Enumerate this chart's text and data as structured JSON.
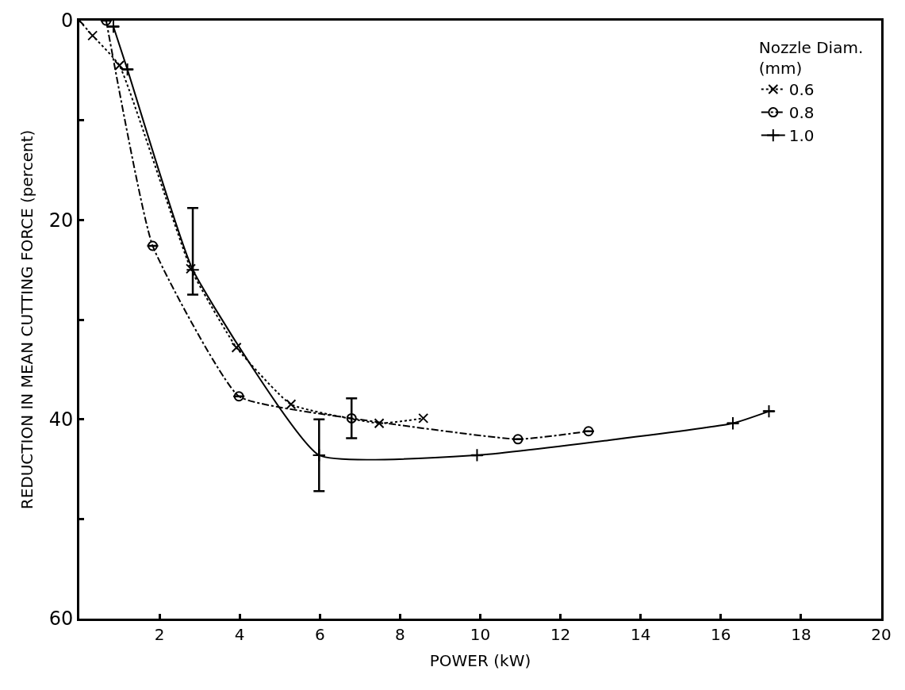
{
  "chart_data": {
    "type": "line",
    "xlabel": "POWER (kW)",
    "ylabel": "REDUCTION IN MEAN CUTTING FORCE (percent)",
    "legend_title": "Nozzle Diam.\n(mm)",
    "legend": "top right",
    "grid": false,
    "xlim": [
      0,
      20
    ],
    "xticks": [
      {
        "value": 0,
        "label": null
      },
      2,
      4,
      6,
      8,
      10,
      12,
      14,
      16,
      18,
      20
    ],
    "ylim": [
      60,
      0
    ],
    "yticks": [
      0,
      {
        "value": 10,
        "label": null
      },
      20,
      {
        "value": 30,
        "label": null
      },
      40,
      {
        "value": 50,
        "label": null
      },
      60
    ],
    "series": [
      {
        "name": "0.6",
        "color": "#000000",
        "marker": "x",
        "line_style": "dotted",
        "x": [
          0,
          0.33,
          1.0,
          2.78,
          3.92,
          5.28,
          7.48,
          8.58
        ],
        "values": [
          0,
          1.5,
          4.5,
          24.9,
          32.8,
          38.5,
          40.4,
          39.9
        ]
      },
      {
        "name": "0.8",
        "color": "#000000",
        "marker": "circle",
        "line_style": "dashdot",
        "x": [
          0.67,
          1.83,
          3.98,
          6.79,
          10.94,
          12.7
        ],
        "values": [
          0,
          22.6,
          37.7,
          39.9,
          42.0,
          41.2
        ],
        "errors": [
          null,
          null,
          null,
          2.0,
          null,
          null
        ]
      },
      {
        "name": "1.0",
        "color": "#000000",
        "marker": "cross",
        "line_style": "solid",
        "x": [
          0.85,
          1.2,
          2.83,
          5.98,
          9.92,
          16.3,
          17.2
        ],
        "values": [
          0.6,
          4.9,
          25.0,
          43.6,
          43.6,
          40.4,
          39.2
        ],
        "errors": [
          null,
          null,
          [
            18.8,
            27.5
          ],
          3.6,
          null,
          null,
          null
        ]
      }
    ]
  }
}
